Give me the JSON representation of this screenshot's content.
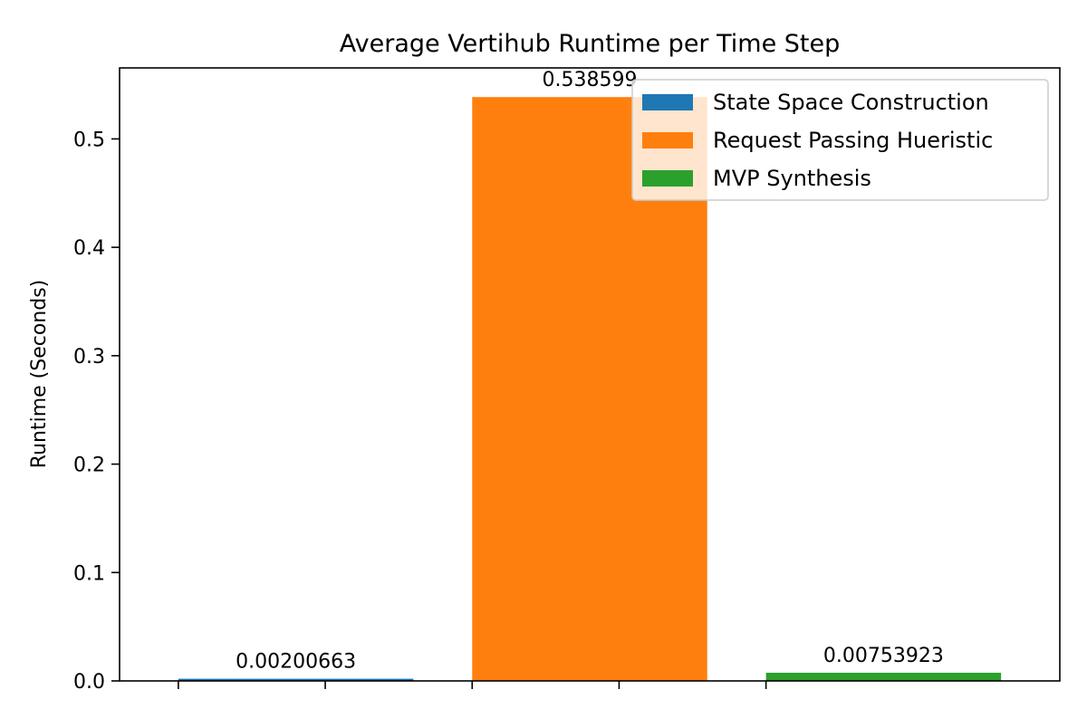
{
  "chart_data": {
    "type": "bar",
    "title": "Average Vertihub Runtime per Time Step",
    "xlabel": "",
    "ylabel": "Runtime (Seconds)",
    "ylim": [
      0,
      0.5655
    ],
    "xlim": [
      -0.6,
      2.6
    ],
    "yticks": [
      0.0,
      0.1,
      0.2,
      0.3,
      0.4,
      0.5
    ],
    "ytick_labels": [
      "0.0",
      "0.1",
      "0.2",
      "0.3",
      "0.4",
      "0.5"
    ],
    "xticks": [
      -0.4,
      0.1,
      0.6,
      1.1,
      1.6
    ],
    "grid": false,
    "legend": {
      "placement": "top-right"
    },
    "series": [
      {
        "name": "State Space Construction",
        "x": 0.0,
        "value": 0.00200663,
        "label": "0.00200663",
        "color": "#1f77b4"
      },
      {
        "name": "Request Passing Hueristic",
        "x": 1.0,
        "value": 0.538599,
        "label": "0.538599",
        "color": "#ff7f0e"
      },
      {
        "name": "MVP Synthesis",
        "x": 2.0,
        "value": 0.00753923,
        "label": "0.00753923",
        "color": "#2ca02c"
      }
    ]
  }
}
